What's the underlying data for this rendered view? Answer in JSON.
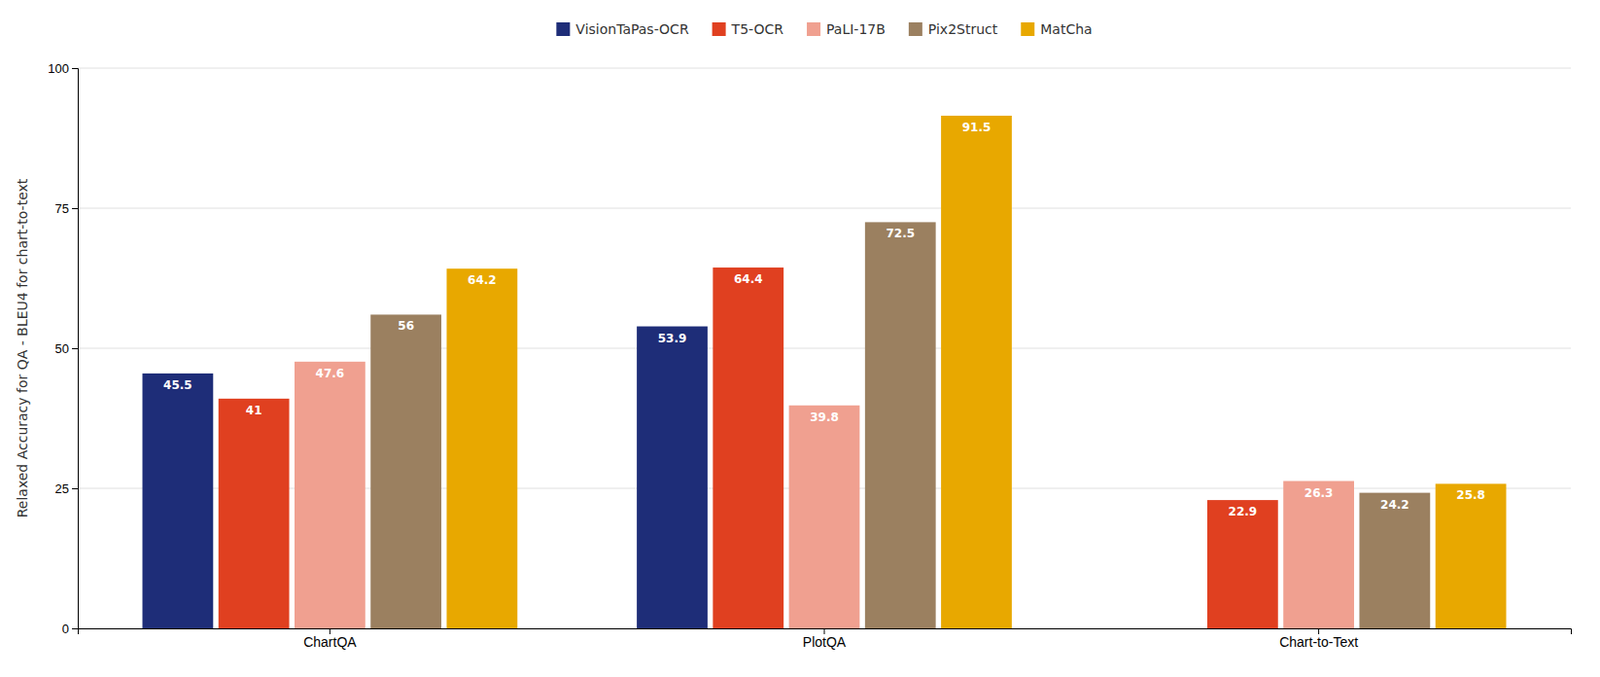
{
  "chart_data": {
    "type": "bar",
    "categories": [
      "ChartQA",
      "PlotQA",
      "Chart-to-Text"
    ],
    "series": [
      {
        "name": "VisionTaPas-OCR",
        "color": "#1e2d78",
        "values": [
          45.5,
          53.9,
          0
        ],
        "value_labels": [
          "45.5",
          "53.9",
          null
        ]
      },
      {
        "name": "T5-OCR",
        "color": "#e04020",
        "values": [
          41,
          64.4,
          22.9
        ],
        "value_labels": [
          "41",
          "64.4",
          "22.9"
        ]
      },
      {
        "name": "PaLI-17B",
        "color": "#f0a090",
        "values": [
          47.6,
          39.8,
          26.3
        ],
        "value_labels": [
          "47.6",
          "39.8",
          "26.3"
        ]
      },
      {
        "name": "Pix2Struct",
        "color": "#9b8060",
        "values": [
          56,
          72.5,
          24.2
        ],
        "value_labels": [
          "56",
          "72.5",
          "24.2"
        ]
      },
      {
        "name": "MatCha",
        "color": "#e8a800",
        "values": [
          64.2,
          91.5,
          25.8
        ],
        "value_labels": [
          "64.2",
          "91.5",
          "25.8"
        ]
      }
    ],
    "y_label": "Relaxed Accuracy for QA - BLEU4 for chart-to-text",
    "ylim": [
      0,
      100
    ],
    "yticks": [
      0,
      25,
      50,
      75,
      100
    ],
    "grid": true,
    "legend": "top",
    "data_labels": true
  }
}
